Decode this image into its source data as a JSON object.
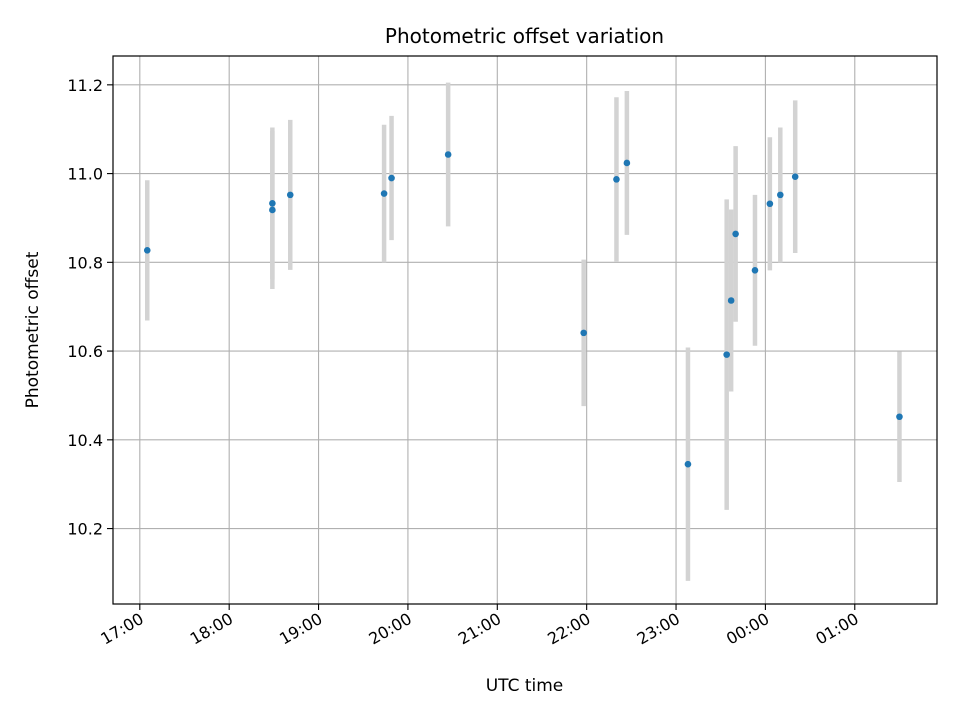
{
  "chart_data": {
    "type": "scatter",
    "title": "Photometric offset variation",
    "xlabel": "UTC time",
    "ylabel": "Photometric offset",
    "x_tick_labels": [
      "17:00",
      "18:00",
      "19:00",
      "20:00",
      "21:00",
      "22:00",
      "23:00",
      "00:00",
      "01:00"
    ],
    "y_tick_labels": [
      "10.2",
      "10.4",
      "10.6",
      "10.8",
      "11.0",
      "11.2"
    ],
    "x_ticks_hours": [
      17,
      18,
      19,
      20,
      21,
      22,
      23,
      24,
      25
    ],
    "y_ticks": [
      10.2,
      10.4,
      10.6,
      10.8,
      11.0,
      11.2
    ],
    "xlim_hours": [
      16.7,
      25.92
    ],
    "ylim": [
      10.03,
      11.265
    ],
    "grid": true,
    "marker_color": "#1f77b4",
    "errorbar_color": "#d3d3d3",
    "points": [
      {
        "time": "17:05",
        "y": 10.827,
        "err": 0.158
      },
      {
        "time": "18:29",
        "y": 10.918,
        "err": 0.178
      },
      {
        "time": "18:29",
        "y": 10.933,
        "err": 0.171
      },
      {
        "time": "18:41",
        "y": 10.952,
        "err": 0.169
      },
      {
        "time": "19:44",
        "y": 10.955,
        "err": 0.155
      },
      {
        "time": "19:49",
        "y": 10.99,
        "err": 0.14
      },
      {
        "time": "20:27",
        "y": 11.043,
        "err": 0.162
      },
      {
        "time": "21:58",
        "y": 10.641,
        "err": 0.165
      },
      {
        "time": "22:20",
        "y": 10.987,
        "err": 0.185
      },
      {
        "time": "22:27",
        "y": 11.024,
        "err": 0.162
      },
      {
        "time": "23:08",
        "y": 10.345,
        "err": 0.263
      },
      {
        "time": "23:34",
        "y": 10.592,
        "err": 0.35
      },
      {
        "time": "23:37",
        "y": 10.714,
        "err": 0.205
      },
      {
        "time": "23:40",
        "y": 10.864,
        "err": 0.198
      },
      {
        "time": "23:53",
        "y": 10.782,
        "err": 0.17
      },
      {
        "time": "00:03",
        "y": 10.932,
        "err": 0.15
      },
      {
        "time": "00:10",
        "y": 10.952,
        "err": 0.152
      },
      {
        "time": "00:20",
        "y": 10.993,
        "err": 0.172
      },
      {
        "time": "01:30",
        "y": 10.452,
        "err": 0.147
      }
    ]
  }
}
